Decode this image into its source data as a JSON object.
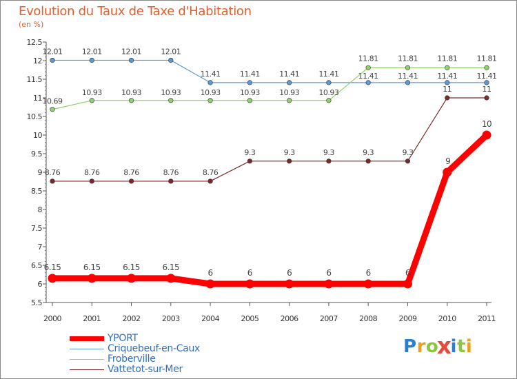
{
  "chart_data": {
    "type": "line",
    "title": "Evolution du Taux de Taxe d'Habitation",
    "subtitle": "(en %)",
    "xlabel": "",
    "ylabel": "",
    "ylim": [
      5.5,
      12.5
    ],
    "yticks": [
      "5.5",
      "6",
      "6.5",
      "7",
      "7.5",
      "8",
      "8.5",
      "9",
      "9.5",
      "10",
      "10.5",
      "11",
      "11.5",
      "12",
      "12.5"
    ],
    "categories": [
      "2000",
      "2001",
      "2002",
      "2003",
      "2004",
      "2005",
      "2006",
      "2007",
      "2008",
      "2009",
      "2010",
      "2011"
    ],
    "series": [
      {
        "name": "Criquebeuf-en-Caux",
        "color": "#5b9bd5",
        "values": [
          12.01,
          12.01,
          12.01,
          12.01,
          11.41,
          11.41,
          11.41,
          11.41,
          11.41,
          11.41,
          11.41,
          11.41
        ],
        "labels": [
          "12.01",
          "12.01",
          "12.01",
          "12.01",
          "11.41",
          "11.41",
          "11.41",
          "11.41",
          "11.41",
          "11.41",
          "11.41",
          "11.41"
        ]
      },
      {
        "name": "Froberville",
        "color": "#8fd16a",
        "values": [
          10.69,
          10.93,
          10.93,
          10.93,
          10.93,
          10.93,
          10.93,
          10.93,
          11.81,
          11.81,
          11.81,
          11.81
        ],
        "labels": [
          "10.69",
          "10.93",
          "10.93",
          "10.93",
          "10.93",
          "10.93",
          "10.93",
          "10.93",
          "11.81",
          "11.81",
          "11.81",
          "11.81"
        ]
      },
      {
        "name": "Vattetot-sur-Mer",
        "color": "#7a2a2a",
        "values": [
          8.76,
          8.76,
          8.76,
          8.76,
          8.76,
          9.3,
          9.3,
          9.3,
          9.3,
          9.3,
          11,
          11
        ],
        "labels": [
          "8.76",
          "8.76",
          "8.76",
          "8.76",
          "8.76",
          "9.3",
          "9.3",
          "9.3",
          "9.3",
          "9.3",
          "11",
          "11"
        ]
      },
      {
        "name": "YPORT",
        "color": "#ff0000",
        "values": [
          6.15,
          6.15,
          6.15,
          6.15,
          6,
          6,
          6,
          6,
          6,
          6,
          9,
          10
        ],
        "labels": [
          "6.15",
          "6.15",
          "6.15",
          "6.15",
          "6",
          "6",
          "6",
          "6",
          "6",
          "6",
          "9",
          "10"
        ]
      }
    ],
    "legend": {
      "placement": "bottom-left",
      "order": [
        "YPORT",
        "Criquebeuf-en-Caux",
        "Froberville",
        "Vattetot-sur-Mer"
      ]
    }
  },
  "logo": {
    "text": "Proxiti",
    "letters": [
      "P",
      "r",
      "o",
      "x",
      "i",
      "t",
      "i"
    ]
  }
}
